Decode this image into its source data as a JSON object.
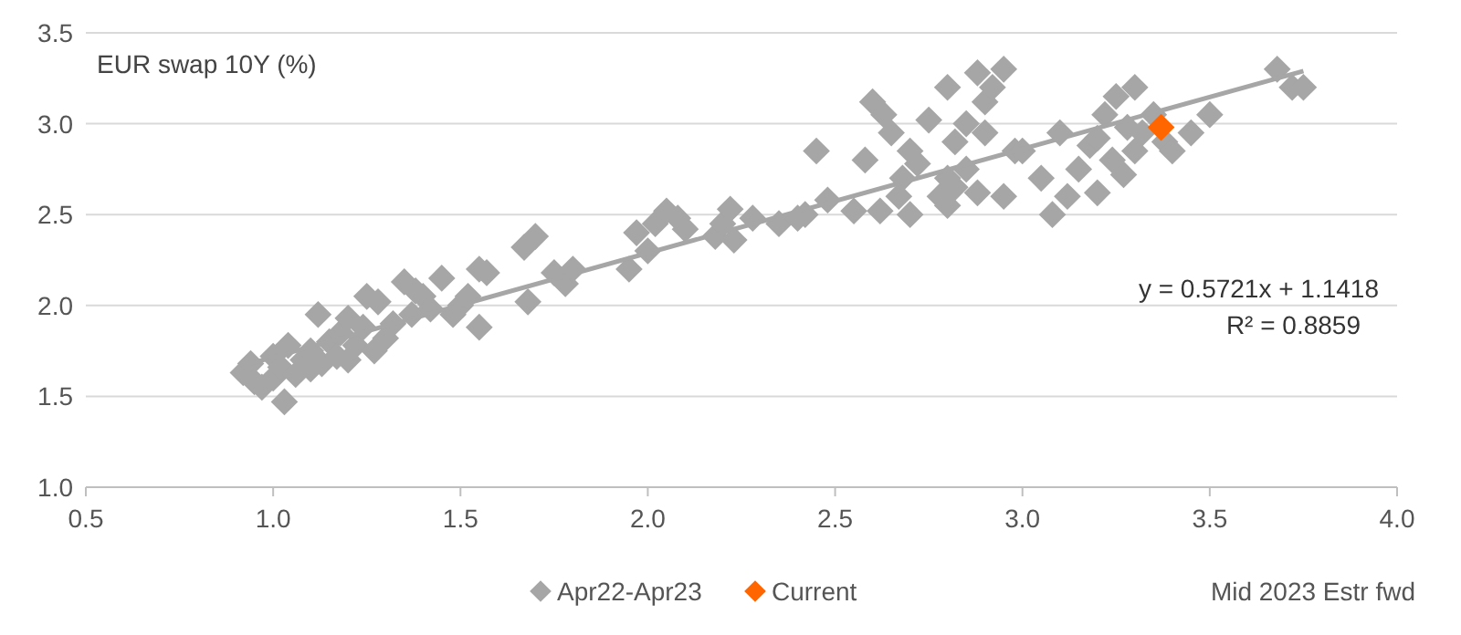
{
  "chart_data": {
    "type": "scatter",
    "ylabel": "EUR swap 10Y (%)",
    "xlabel": "Mid 2023 Estr fwd",
    "marker": "diamond",
    "grid": "y",
    "legend": "bottom",
    "xlim": [
      0.5,
      4.0
    ],
    "xticks": [
      0.5,
      {
        "value": 1,
        "label": "1.0"
      },
      1.5,
      {
        "value": 2,
        "label": "2.0"
      },
      2.5,
      {
        "value": 3,
        "label": "3.0"
      },
      3.5,
      {
        "value": 4,
        "label": "4.0"
      }
    ],
    "ylim": [
      1.0,
      3.5
    ],
    "yticks": [
      {
        "value": 1,
        "label": "1.0"
      },
      1.5,
      {
        "value": 2,
        "label": "2.0"
      },
      2.5,
      {
        "value": 3,
        "label": "3.0"
      },
      3.5
    ],
    "annotations": [
      "y = 0.5721x + 1.1418",
      "R² = 0.8859"
    ],
    "series": [
      {
        "type": "line",
        "marker": "none",
        "color": "#a6a6a6",
        "x": [
          0.92,
          3.75
        ],
        "values": [
          1.67,
          3.29
        ]
      },
      {
        "name": "Apr22-Apr23",
        "color": "#a6a6a6",
        "x": [
          0.92,
          0.94,
          0.95,
          0.97,
          1.0,
          1.0,
          1.02,
          1.03,
          1.04,
          1.06,
          1.08,
          1.1,
          1.1,
          1.12,
          1.13,
          1.15,
          1.17,
          1.18,
          1.2,
          1.2,
          1.22,
          1.24,
          1.25,
          1.27,
          1.28,
          1.3,
          1.32,
          1.35,
          1.37,
          1.38,
          1.4,
          1.42,
          1.45,
          1.48,
          1.5,
          1.52,
          1.55,
          1.55,
          1.57,
          1.67,
          1.7,
          1.68,
          1.75,
          1.78,
          1.8,
          1.95,
          1.97,
          2.0,
          2.02,
          2.05,
          2.08,
          2.1,
          2.18,
          2.2,
          2.23,
          2.22,
          2.28,
          2.35,
          2.4,
          2.42,
          2.45,
          2.48,
          2.55,
          2.58,
          2.6,
          2.62,
          2.63,
          2.65,
          2.67,
          2.68,
          2.7,
          2.7,
          2.72,
          2.75,
          2.78,
          2.8,
          2.8,
          2.8,
          2.82,
          2.82,
          2.85,
          2.85,
          2.88,
          2.9,
          2.92,
          2.95,
          2.95,
          2.88,
          2.9,
          2.98,
          3.0,
          3.05,
          3.08,
          3.1,
          3.12,
          3.15,
          3.18,
          3.2,
          3.2,
          3.22,
          3.24,
          3.25,
          3.27,
          3.28,
          3.3,
          3.3,
          3.32,
          3.35,
          3.38,
          3.4,
          3.45,
          3.5,
          3.68,
          3.72,
          3.75
        ],
        "values": [
          1.63,
          1.68,
          1.58,
          1.55,
          1.6,
          1.72,
          1.66,
          1.47,
          1.78,
          1.62,
          1.7,
          1.65,
          1.75,
          1.95,
          1.68,
          1.8,
          1.72,
          1.85,
          1.93,
          1.7,
          1.78,
          1.88,
          2.05,
          1.75,
          2.02,
          1.82,
          1.9,
          2.13,
          1.95,
          2.08,
          2.05,
          1.98,
          2.15,
          1.95,
          2.0,
          2.05,
          2.2,
          1.88,
          2.18,
          2.32,
          2.38,
          2.02,
          2.18,
          2.12,
          2.2,
          2.2,
          2.4,
          2.3,
          2.45,
          2.52,
          2.48,
          2.42,
          2.38,
          2.45,
          2.36,
          2.53,
          2.48,
          2.45,
          2.48,
          2.5,
          2.85,
          2.58,
          2.52,
          2.8,
          3.12,
          2.52,
          3.05,
          2.95,
          2.6,
          2.7,
          2.85,
          2.5,
          2.78,
          3.02,
          2.6,
          3.2,
          2.7,
          2.55,
          2.65,
          2.9,
          3.0,
          2.75,
          3.28,
          3.12,
          3.2,
          3.3,
          2.6,
          2.62,
          2.95,
          2.85,
          2.85,
          2.7,
          2.5,
          2.95,
          2.6,
          2.75,
          2.88,
          2.92,
          2.62,
          3.05,
          2.8,
          3.15,
          2.72,
          2.98,
          3.2,
          2.85,
          2.95,
          3.05,
          2.9,
          2.85,
          2.95,
          3.05,
          3.3,
          3.2,
          3.2
        ]
      },
      {
        "name": "Current",
        "color": "#ff6600",
        "x": [
          3.37
        ],
        "values": [
          2.98
        ]
      }
    ]
  }
}
